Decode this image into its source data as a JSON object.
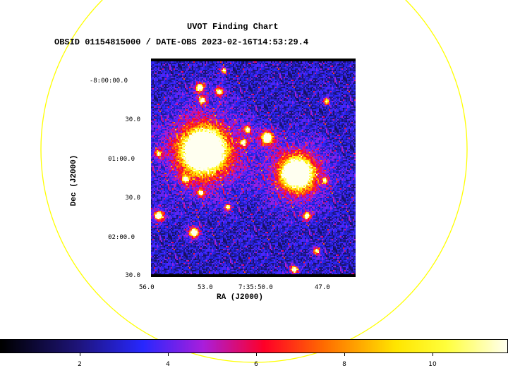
{
  "chart": {
    "title": "UVOT Finding Chart",
    "subtitle": "OBSID 01154815000 / DATE-OBS 2023-02-16T14:53:29.4",
    "xlabel": "RA (J2000)",
    "ylabel": "Dec (J2000)",
    "x_ticks": [
      "56.0",
      "53.0",
      "7:35:50.0",
      "47.0"
    ],
    "y_ticks": [
      "-8:00:00.0",
      "30.0",
      "01:00.0",
      "30.0",
      "02:00.0",
      "30.0"
    ],
    "colorbar_ticks": [
      "2",
      "4",
      "6",
      "8",
      "10"
    ],
    "circle_color": "#ffff00"
  },
  "chart_data": {
    "type": "heatmap",
    "title": "UVOT Finding Chart",
    "subtitle": "OBSID 01154815000 / DATE-OBS 2023-02-16T14:53:29.4",
    "xlabel": "RA (J2000)",
    "ylabel": "Dec (J2000)",
    "x_tick_labels": [
      "56.0",
      "53.0",
      "7:35:50.0",
      "47.0"
    ],
    "y_tick_labels": [
      "-8:00:00.0",
      "30.0",
      "01:00.0",
      "30.0",
      "02:00.0",
      "30.0"
    ],
    "colorbar": {
      "colormap": "heat",
      "ticks": [
        2,
        4,
        6,
        8,
        10
      ],
      "range": [
        0.5,
        11.5
      ]
    },
    "grid": false
  }
}
